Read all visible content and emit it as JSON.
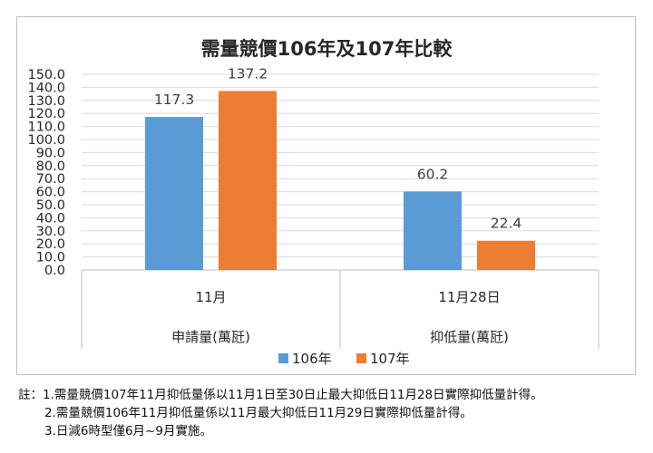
{
  "chart_data": {
    "type": "bar",
    "title": "需量競價106年及107年比較",
    "groups": [
      {
        "category": "11月",
        "group_label": "申請量(萬瓩)"
      },
      {
        "category": "11月28日",
        "group_label": "抑低量(萬瓩)"
      }
    ],
    "categories": [
      "11月",
      "11月28日"
    ],
    "series": [
      {
        "name": "106年",
        "values": [
          117.3,
          60.2
        ],
        "labels": [
          "117.3",
          "60.2"
        ],
        "color": "#5b9bd5"
      },
      {
        "name": "107年",
        "values": [
          137.2,
          22.4
        ],
        "labels": [
          "137.2",
          "22.4"
        ],
        "color": "#ed7d31"
      }
    ],
    "ylim": [
      0,
      150
    ],
    "yticks": [
      "0.0",
      "10.0",
      "20.0",
      "30.0",
      "40.0",
      "50.0",
      "60.0",
      "70.0",
      "80.0",
      "90.0",
      "100.0",
      "110.0",
      "120.0",
      "130.0",
      "140.0",
      "150.0"
    ],
    "grid": true,
    "legend_position": "bottom"
  },
  "notes": {
    "line1": "註：1.需量競價107年11月抑低量係以11月1日至30日止最大抑低日11月28日實際抑低量計得。",
    "line2": "2.需量競價106年11月抑低量係以11月最大抑低日11月29日實際抑低量計得。",
    "line3": "3.日減6時型僅6月~9月實施。"
  }
}
